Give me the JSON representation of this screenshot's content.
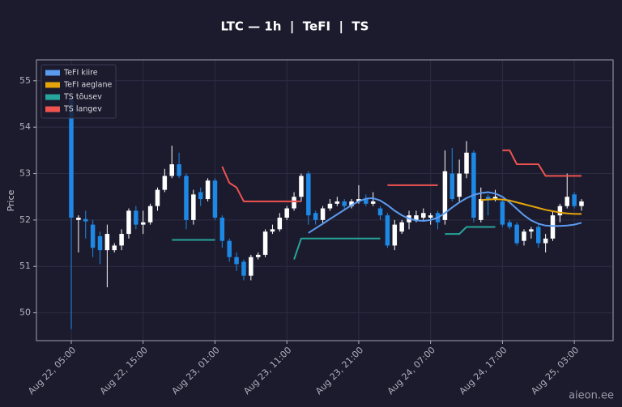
{
  "chart_data": {
    "type": "candlestick",
    "title": "LTC — 1h  |  TeFI  |  TS",
    "y_label": "Price",
    "watermark": "aieon.ee",
    "ylim": [
      49.4,
      55.45
    ],
    "yticks": [
      50,
      51,
      52,
      53,
      54,
      55
    ],
    "grid": true,
    "legend": "upper left",
    "up_color": "#ffffff",
    "down_color": "#1e88e5",
    "x": [
      "Aug 22, 05:00",
      "Aug 22, 06:00",
      "Aug 22, 07:00",
      "Aug 22, 08:00",
      "Aug 22, 09:00",
      "Aug 22, 10:00",
      "Aug 22, 11:00",
      "Aug 22, 12:00",
      "Aug 22, 13:00",
      "Aug 22, 14:00",
      "Aug 22, 15:00",
      "Aug 22, 16:00",
      "Aug 22, 17:00",
      "Aug 22, 18:00",
      "Aug 22, 19:00",
      "Aug 22, 20:00",
      "Aug 22, 21:00",
      "Aug 22, 22:00",
      "Aug 22, 23:00",
      "Aug 23, 00:00",
      "Aug 23, 01:00",
      "Aug 23, 02:00",
      "Aug 23, 03:00",
      "Aug 23, 04:00",
      "Aug 23, 05:00",
      "Aug 23, 06:00",
      "Aug 23, 07:00",
      "Aug 23, 08:00",
      "Aug 23, 09:00",
      "Aug 23, 10:00",
      "Aug 23, 11:00",
      "Aug 23, 12:00",
      "Aug 23, 13:00",
      "Aug 23, 14:00",
      "Aug 23, 15:00",
      "Aug 23, 16:00",
      "Aug 23, 17:00",
      "Aug 23, 18:00",
      "Aug 23, 19:00",
      "Aug 23, 20:00",
      "Aug 23, 21:00",
      "Aug 23, 22:00",
      "Aug 23, 23:00",
      "Aug 24, 00:00",
      "Aug 24, 01:00",
      "Aug 24, 02:00",
      "Aug 24, 03:00",
      "Aug 24, 04:00",
      "Aug 24, 05:00",
      "Aug 24, 06:00",
      "Aug 24, 07:00",
      "Aug 24, 08:00",
      "Aug 24, 09:00",
      "Aug 24, 10:00",
      "Aug 24, 11:00",
      "Aug 24, 12:00",
      "Aug 24, 13:00",
      "Aug 24, 14:00",
      "Aug 24, 15:00",
      "Aug 24, 16:00",
      "Aug 24, 17:00",
      "Aug 24, 18:00",
      "Aug 24, 19:00",
      "Aug 24, 20:00",
      "Aug 24, 21:00",
      "Aug 24, 22:00",
      "Aug 24, 23:00",
      "Aug 25, 00:00",
      "Aug 25, 01:00",
      "Aug 25, 02:00",
      "Aug 25, 03:00",
      "Aug 25, 04:00"
    ],
    "xticks": [
      "Aug 22, 05:00",
      "Aug 22, 15:00",
      "Aug 23, 01:00",
      "Aug 23, 11:00",
      "Aug 23, 21:00",
      "Aug 24, 07:00",
      "Aug 24, 17:00",
      "Aug 25, 03:00"
    ],
    "open": [
      54.6,
      52.0,
      52.02,
      51.9,
      51.65,
      51.35,
      51.35,
      51.45,
      51.7,
      52.2,
      51.9,
      51.95,
      52.3,
      52.65,
      52.95,
      53.2,
      52.95,
      52.0,
      52.6,
      52.45,
      52.85,
      52.05,
      51.55,
      51.2,
      51.1,
      50.8,
      51.2,
      51.25,
      51.75,
      51.8,
      52.05,
      52.25,
      52.5,
      53.0,
      52.15,
      52.0,
      52.25,
      52.35,
      52.4,
      52.3,
      52.4,
      52.45,
      52.35,
      52.25,
      52.1,
      51.45,
      51.75,
      51.95,
      52.0,
      52.05,
      52.05,
      52.15,
      52.0,
      53.0,
      52.5,
      53.0,
      53.45,
      52.0,
      52.5,
      52.45,
      52.4,
      51.95,
      51.9,
      51.55,
      51.75,
      51.85,
      51.5,
      51.6,
      52.1,
      52.3,
      52.55,
      52.3
    ],
    "high": [
      54.7,
      52.1,
      52.2,
      52.0,
      51.75,
      51.9,
      51.5,
      51.8,
      52.25,
      52.3,
      52.2,
      52.35,
      52.7,
      53.1,
      53.6,
      53.45,
      53.0,
      52.65,
      52.7,
      52.9,
      52.9,
      52.1,
      51.6,
      51.3,
      51.15,
      51.25,
      51.3,
      51.8,
      51.9,
      52.15,
      52.3,
      52.6,
      53.0,
      53.05,
      52.2,
      52.3,
      52.45,
      52.5,
      52.45,
      52.45,
      52.75,
      52.55,
      52.6,
      52.3,
      52.15,
      52.0,
      52.0,
      52.2,
      52.2,
      52.25,
      52.15,
      52.2,
      53.5,
      53.55,
      53.3,
      53.7,
      53.5,
      52.7,
      52.55,
      52.65,
      52.45,
      52.0,
      51.95,
      51.8,
      51.85,
      51.9,
      51.7,
      52.2,
      52.35,
      53.0,
      52.6,
      52.45
    ],
    "low": [
      49.65,
      51.3,
      51.6,
      51.2,
      51.05,
      50.55,
      51.3,
      51.35,
      51.6,
      51.8,
      51.7,
      51.9,
      52.2,
      52.6,
      52.9,
      52.9,
      51.8,
      51.9,
      52.3,
      52.4,
      52.0,
      51.4,
      51.1,
      50.9,
      50.7,
      50.7,
      51.15,
      51.2,
      51.7,
      51.75,
      52.0,
      52.2,
      52.4,
      51.9,
      51.9,
      51.9,
      52.2,
      52.3,
      52.2,
      52.25,
      52.35,
      52.3,
      52.3,
      52.0,
      51.4,
      51.35,
      51.7,
      51.8,
      51.95,
      52.0,
      51.9,
      51.8,
      51.9,
      52.4,
      52.4,
      52.9,
      51.95,
      51.95,
      52.1,
      52.4,
      51.85,
      51.8,
      51.45,
      51.45,
      51.6,
      51.4,
      51.3,
      51.55,
      51.95,
      52.25,
      52.25,
      52.2
    ],
    "close": [
      52.05,
      52.05,
      51.97,
      51.4,
      51.35,
      51.7,
      51.45,
      51.7,
      52.2,
      51.9,
      51.95,
      52.3,
      52.65,
      52.95,
      53.2,
      52.95,
      52.0,
      52.55,
      52.45,
      52.85,
      52.05,
      51.55,
      51.2,
      51.05,
      50.8,
      51.2,
      51.25,
      51.75,
      51.8,
      52.05,
      52.25,
      52.5,
      52.95,
      52.1,
      52.0,
      52.25,
      52.35,
      52.4,
      52.3,
      52.4,
      52.45,
      52.35,
      52.4,
      52.1,
      51.45,
      51.9,
      51.95,
      52.1,
      52.1,
      52.15,
      52.1,
      51.95,
      53.05,
      52.45,
      53.0,
      53.45,
      52.05,
      52.45,
      52.45,
      52.5,
      51.9,
      51.85,
      51.5,
      51.75,
      51.8,
      51.5,
      51.6,
      52.1,
      52.3,
      52.5,
      52.3,
      52.4
    ],
    "series": [
      {
        "name": "TeFI kiire",
        "color": "#5b9bef",
        "values": [
          null,
          null,
          null,
          null,
          null,
          null,
          null,
          null,
          null,
          null,
          null,
          null,
          null,
          null,
          null,
          null,
          null,
          null,
          null,
          null,
          null,
          null,
          null,
          null,
          null,
          null,
          null,
          null,
          null,
          null,
          null,
          null,
          null,
          51.72,
          51.82,
          51.92,
          52.02,
          52.12,
          52.22,
          52.32,
          52.4,
          52.46,
          52.47,
          52.42,
          52.32,
          52.2,
          52.1,
          52.03,
          51.99,
          51.98,
          52.0,
          52.05,
          52.15,
          52.27,
          52.38,
          52.47,
          52.54,
          52.58,
          52.6,
          52.57,
          52.5,
          52.38,
          52.24,
          52.1,
          51.99,
          51.92,
          51.88,
          51.87,
          51.87,
          51.88,
          51.9,
          51.94
        ]
      },
      {
        "name": "TeFI aeglane",
        "color": "#e5a50a",
        "values": [
          null,
          null,
          null,
          null,
          null,
          null,
          null,
          null,
          null,
          null,
          null,
          null,
          null,
          null,
          null,
          null,
          null,
          null,
          null,
          null,
          null,
          null,
          null,
          null,
          null,
          null,
          null,
          null,
          null,
          null,
          null,
          null,
          null,
          null,
          null,
          null,
          null,
          null,
          null,
          null,
          null,
          null,
          null,
          null,
          null,
          null,
          null,
          null,
          null,
          null,
          null,
          null,
          null,
          null,
          null,
          null,
          null,
          52.43,
          52.44,
          52.45,
          52.44,
          52.42,
          52.38,
          52.34,
          52.3,
          52.26,
          52.22,
          52.19,
          52.16,
          52.14,
          52.13,
          52.13
        ]
      },
      {
        "name": "TS tõusev",
        "color": "#26a69a",
        "values": [
          null,
          null,
          null,
          null,
          null,
          null,
          null,
          null,
          null,
          null,
          null,
          null,
          null,
          null,
          51.57,
          51.57,
          51.57,
          51.57,
          51.57,
          51.57,
          51.57,
          null,
          null,
          null,
          null,
          null,
          null,
          null,
          null,
          null,
          null,
          51.15,
          51.6,
          51.6,
          51.6,
          51.6,
          51.6,
          51.6,
          51.6,
          51.6,
          51.6,
          51.6,
          51.6,
          51.6,
          null,
          null,
          null,
          null,
          null,
          null,
          null,
          null,
          51.7,
          51.7,
          51.7,
          51.85,
          51.85,
          51.85,
          51.85,
          51.85,
          null,
          null,
          null,
          null,
          null,
          null,
          null,
          null,
          null,
          null,
          null,
          null
        ]
      },
      {
        "name": "TS langev",
        "color": "#ef5350",
        "values": [
          null,
          null,
          null,
          null,
          null,
          null,
          null,
          null,
          null,
          null,
          null,
          null,
          null,
          null,
          null,
          null,
          null,
          null,
          null,
          null,
          null,
          53.15,
          52.8,
          52.7,
          52.4,
          52.4,
          52.4,
          52.4,
          52.4,
          52.4,
          52.4,
          52.4,
          52.4,
          null,
          null,
          null,
          null,
          null,
          null,
          null,
          null,
          null,
          null,
          null,
          52.75,
          52.75,
          52.75,
          52.75,
          52.75,
          52.75,
          52.75,
          52.75,
          null,
          null,
          null,
          null,
          null,
          null,
          null,
          null,
          53.5,
          53.5,
          53.2,
          53.2,
          53.2,
          53.2,
          52.95,
          52.95,
          52.95,
          52.95,
          52.95,
          52.95
        ]
      }
    ]
  }
}
